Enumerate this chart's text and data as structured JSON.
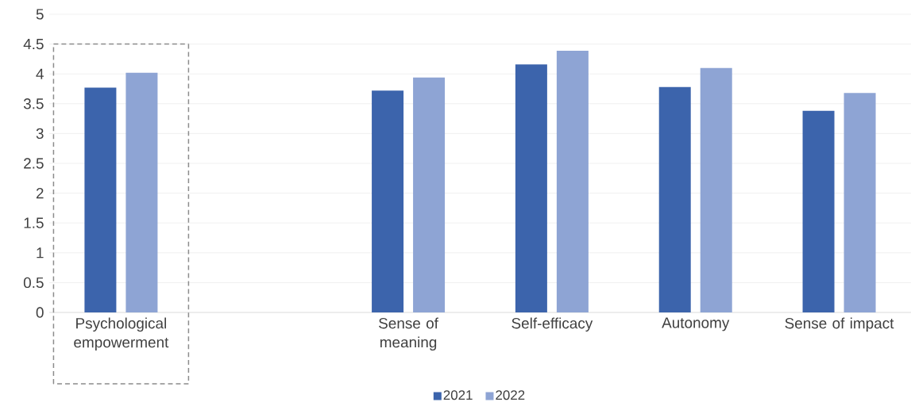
{
  "chart_data": {
    "type": "bar",
    "categories": [
      "Psychological empowerment",
      null,
      "Sense of meaning",
      "Self-efficacy",
      "Autonomy",
      "Sense of impact"
    ],
    "series": [
      {
        "name": "2021",
        "color": "#3c64ac",
        "values": [
          3.77,
          null,
          3.72,
          4.16,
          3.78,
          3.38
        ]
      },
      {
        "name": "2022",
        "color": "#8ea4d4",
        "values": [
          4.02,
          null,
          3.94,
          4.39,
          4.1,
          3.68
        ]
      }
    ],
    "ylim": [
      0,
      5
    ],
    "yticks": [
      0,
      0.5,
      1,
      1.5,
      2,
      2.5,
      3,
      3.5,
      4,
      4.5,
      5
    ],
    "grid": "y",
    "legend": "bottom"
  }
}
